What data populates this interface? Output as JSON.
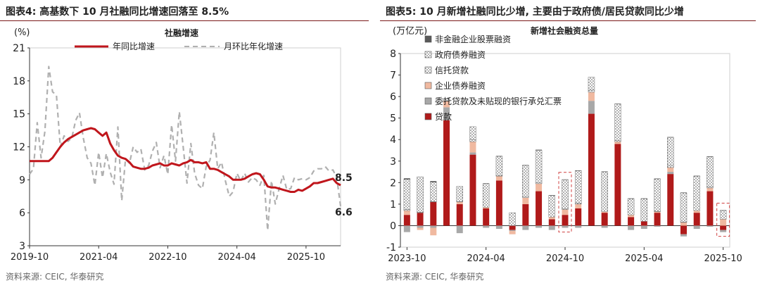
{
  "left": {
    "title": "图表4:  高基数下 10 月社融同比增速回落至 8.5%",
    "source": "资料来源: CEIC, 华泰研究"
  },
  "right": {
    "title": "图表5:  10 月新增社融同比少增, 主要由于政府债/居民贷款同比少增",
    "source": "资料来源: CEIC, 华泰研究"
  },
  "chart_data": [
    {
      "type": "line",
      "title": "社融增速",
      "unit_label": "(%)",
      "ylim": [
        3,
        21
      ],
      "yticks": [
        3,
        6,
        9,
        12,
        15,
        18,
        21
      ],
      "x_tick_labels": [
        "2019-10",
        "2021-04",
        "2022-10",
        "2024-04",
        "2025-10"
      ],
      "x_start": "2019-10",
      "legend_position": "top",
      "series": [
        {
          "name": "年同比增速",
          "color": "#c0161c",
          "values": [
            10.7,
            10.7,
            10.7,
            10.7,
            10.7,
            10.7,
            11.0,
            11.5,
            12.0,
            12.4,
            12.7,
            12.9,
            13.1,
            13.3,
            13.5,
            13.6,
            13.7,
            13.6,
            13.3,
            13.0,
            13.3,
            12.3,
            11.7,
            11.2,
            11.0,
            10.9,
            10.6,
            10.2,
            10.1,
            10.0,
            10.0,
            10.1,
            10.3,
            10.4,
            10.5,
            10.3,
            10.3,
            10.5,
            10.4,
            10.3,
            10.5,
            10.6,
            10.8,
            10.6,
            10.6,
            10.5,
            10.6,
            10.0,
            10.0,
            9.9,
            9.7,
            9.5,
            9.3,
            9.0,
            9.0,
            9.0,
            9.1,
            9.3,
            9.5,
            9.6,
            9.5,
            9.0,
            8.4,
            8.3,
            8.3,
            8.2,
            8.1,
            8.0,
            7.9,
            7.9,
            8.1,
            8.0,
            8.2,
            8.4,
            8.7,
            8.7,
            8.8,
            8.9,
            9.0,
            9.1,
            8.7,
            8.5
          ],
          "last_label": "8.5"
        },
        {
          "name": "月环比年化增速",
          "color": "#b0b0b0",
          "dashed": true,
          "values": [
            9.5,
            10.0,
            14.2,
            11.0,
            13.4,
            19.3,
            17.0,
            16.7,
            12.0,
            13.0,
            12.5,
            12.8,
            14.4,
            15.1,
            12.8,
            11.0,
            10.5,
            8.5,
            11.5,
            9.2,
            11.4,
            9.7,
            8.6,
            13.8,
            7.1,
            10.9,
            10.5,
            12.0,
            11.5,
            11.8,
            9.9,
            10.3,
            11.6,
            12.4,
            10.1,
            11.2,
            9.5,
            14.0,
            10.7,
            15.2,
            12.0,
            8.7,
            12.3,
            9.6,
            8.5,
            8.2,
            10.2,
            10.8,
            13.3,
            10.0,
            10.6,
            8.9,
            7.5,
            7.9,
            9.6,
            8.9,
            9.6,
            8.8,
            9.2,
            9.0,
            8.5,
            9.4,
            4.4,
            8.9,
            6.8,
            8.2,
            9.4,
            8.1,
            8.2,
            9.2,
            9.0,
            9.1,
            9.0,
            9.2,
            9.8,
            10.0,
            10.0,
            10.2,
            9.8,
            9.9,
            9.2,
            6.6
          ],
          "last_label": "6.6"
        }
      ]
    },
    {
      "type": "bar",
      "stacked": true,
      "title": "新增社会融资总量",
      "unit_label": "(万亿元)",
      "ylim": [
        -1,
        8
      ],
      "yticks": [
        -1,
        0,
        1,
        2,
        3,
        4,
        5,
        6,
        7,
        8
      ],
      "x_tick_labels": [
        "2023-10",
        "2024-04",
        "2024-10",
        "2025-04",
        "2025-10"
      ],
      "x_start": "2023-10",
      "legend_position": "top-left",
      "highlight_bars": [
        12,
        24
      ],
      "series": [
        {
          "name": "贷款",
          "color": "#b01a1a",
          "pattern": "solid",
          "values": [
            0.5,
            0.6,
            1.1,
            4.9,
            1.0,
            3.3,
            0.8,
            2.1,
            -0.2,
            1.0,
            1.6,
            0.3,
            0.5,
            0.8,
            5.2,
            0.6,
            3.8,
            0.4,
            0.2,
            0.6,
            2.4,
            -0.4,
            0.6,
            1.6,
            -0.2
          ]
        },
        {
          "name": "委托贷款及未贴现的银行承兑汇票",
          "color": "#a8a8a8",
          "pattern": "solid",
          "values": [
            -0.3,
            -0.1,
            -0.1,
            0.6,
            -0.35,
            0.1,
            -0.1,
            -0.15,
            -0.05,
            -0.2,
            -0.1,
            -0.2,
            -0.1,
            -0.1,
            0.6,
            -0.1,
            0.0,
            -0.2,
            -0.15,
            -0.05,
            0.1,
            -0.1,
            -0.15,
            -0.05,
            -0.1
          ]
        },
        {
          "name": "企业债券融资",
          "color": "#f0b9a0",
          "pattern": "solid",
          "values": [
            0.2,
            -0.1,
            -0.35,
            0.3,
            0.1,
            0.5,
            0.05,
            0.2,
            -0.15,
            0.3,
            0.35,
            0.1,
            0.25,
            0.2,
            0.4,
            0.05,
            0.1,
            0.1,
            0.0,
            0.05,
            0.2,
            0.15,
            0.1,
            0.15,
            0.3
          ]
        },
        {
          "name": "信托贷款",
          "color": "#5a5a5a",
          "pattern": "dots",
          "values": [
            0.05,
            0.02,
            0.02,
            0.1,
            0.02,
            0.1,
            0.0,
            0.02,
            0.0,
            0.05,
            0.05,
            0.0,
            0.03,
            0.05,
            0.1,
            0.0,
            0.05,
            0.0,
            0.0,
            0.02,
            0.1,
            0.02,
            0.0,
            0.05,
            0.0
          ]
        },
        {
          "name": "政府债券融资",
          "color": "#5a5a5a",
          "pattern": "dots",
          "values": [
            1.4,
            1.65,
            0.9,
            0.0,
            0.7,
            0.6,
            1.1,
            0.9,
            0.6,
            1.45,
            1.5,
            1.0,
            1.35,
            1.5,
            0.6,
            1.85,
            1.7,
            0.75,
            1.05,
            1.5,
            1.3,
            1.35,
            1.6,
            1.4,
            0.4
          ]
        },
        {
          "name": "非金融企业股票融资",
          "color": "#5a5a5a",
          "pattern": "solid",
          "values": [
            0.05,
            0.0,
            0.05,
            0.0,
            0.0,
            0.0,
            0.02,
            0.02,
            0.0,
            0.02,
            0.03,
            0.02,
            0.02,
            0.02,
            0.0,
            0.02,
            0.02,
            0.02,
            0.02,
            0.02,
            0.02,
            0.02,
            0.02,
            0.02,
            0.02
          ]
        }
      ]
    }
  ]
}
